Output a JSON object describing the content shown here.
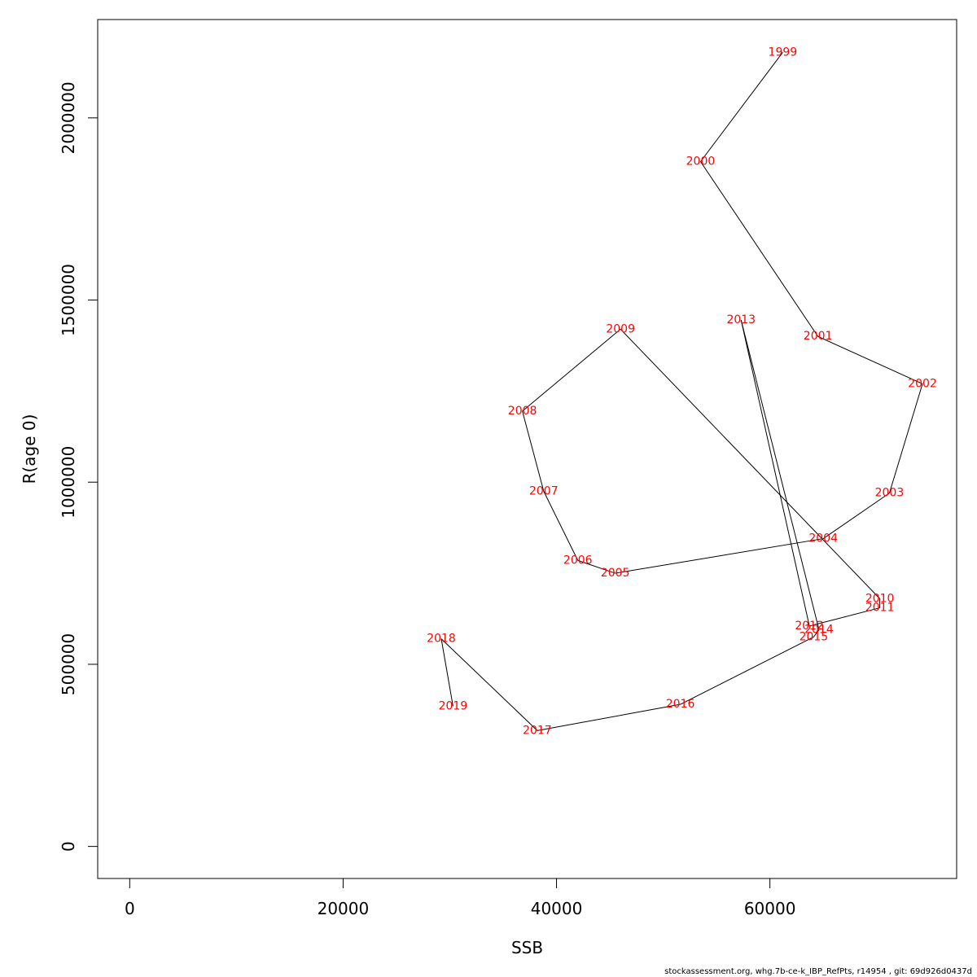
{
  "chart_data": {
    "type": "line",
    "xlabel": "SSB",
    "ylabel": "R(age 0)",
    "xlim": [
      -3000,
      77500
    ],
    "ylim": [
      -88000,
      2270000
    ],
    "x_ticks": [
      0,
      20000,
      40000,
      60000
    ],
    "y_ticks": [
      0,
      500000,
      1000000,
      1500000,
      2000000
    ],
    "grid": false,
    "line_color": "#000000",
    "label_color": "#ff0000",
    "points": [
      {
        "label": "1999",
        "x": 61200,
        "y": 2180000
      },
      {
        "label": "2000",
        "x": 53500,
        "y": 1880000
      },
      {
        "label": "2001",
        "x": 64500,
        "y": 1400000
      },
      {
        "label": "2002",
        "x": 74300,
        "y": 1270000
      },
      {
        "label": "2003",
        "x": 71200,
        "y": 970000
      },
      {
        "label": "2004",
        "x": 65000,
        "y": 845000
      },
      {
        "label": "2005",
        "x": 45500,
        "y": 750000
      },
      {
        "label": "2006",
        "x": 42000,
        "y": 785000
      },
      {
        "label": "2007",
        "x": 38800,
        "y": 975000
      },
      {
        "label": "2008",
        "x": 36800,
        "y": 1195000
      },
      {
        "label": "2009",
        "x": 46000,
        "y": 1420000
      },
      {
        "label": "2010",
        "x": 70300,
        "y": 680000
      },
      {
        "label": "2011",
        "x": 70300,
        "y": 655000
      },
      {
        "label": "2012",
        "x": 63700,
        "y": 605000
      },
      {
        "label": "2013",
        "x": 57300,
        "y": 1445000
      },
      {
        "label": "2014",
        "x": 64600,
        "y": 595000
      },
      {
        "label": "2015",
        "x": 64100,
        "y": 575000
      },
      {
        "label": "2016",
        "x": 51600,
        "y": 390000
      },
      {
        "label": "2017",
        "x": 38200,
        "y": 318000
      },
      {
        "label": "2018",
        "x": 29200,
        "y": 570000
      },
      {
        "label": "2019",
        "x": 30300,
        "y": 385000
      }
    ]
  },
  "footer_text": "stockassessment.org, whg.7b-ce-k_IBP_RefPts, r14954 , git: 69d926d0437d"
}
